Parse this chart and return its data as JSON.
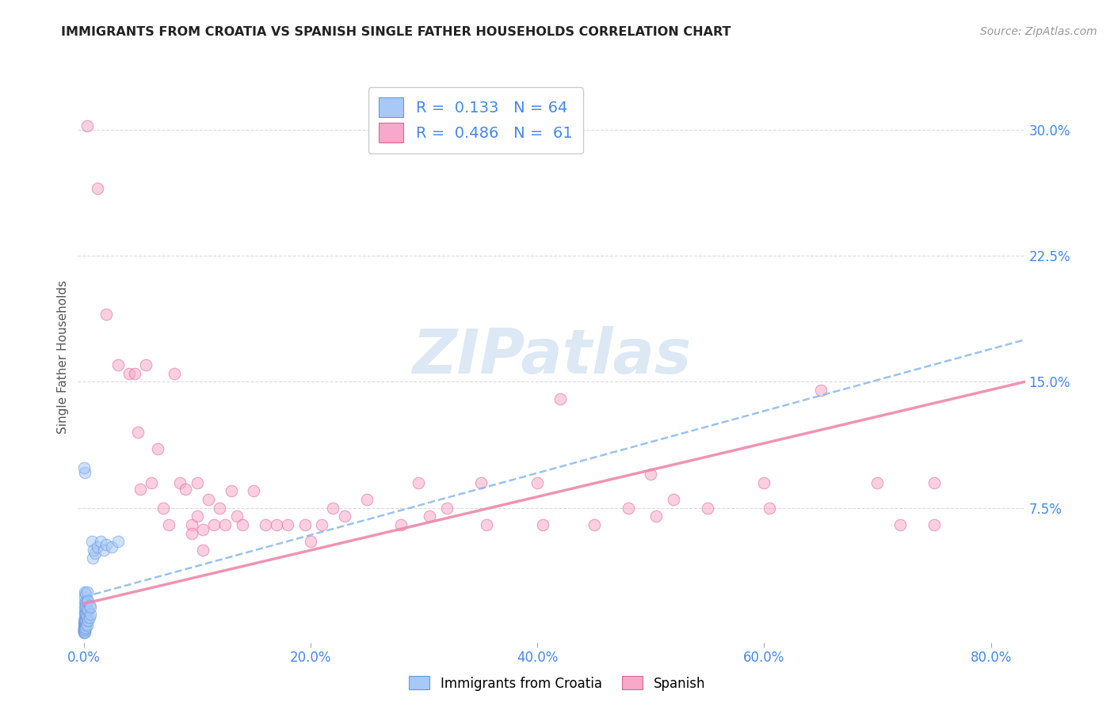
{
  "title": "IMMIGRANTS FROM CROATIA VS SPANISH SINGLE FATHER HOUSEHOLDS CORRELATION CHART",
  "source": "Source: ZipAtlas.com",
  "ylabel": "Single Father Households",
  "x_tick_labels": [
    "0.0%",
    "20.0%",
    "40.0%",
    "60.0%",
    "80.0%"
  ],
  "x_tick_vals": [
    0.0,
    0.2,
    0.4,
    0.6,
    0.8
  ],
  "y_tick_right_labels": [
    "7.5%",
    "15.0%",
    "22.5%",
    "30.0%"
  ],
  "y_tick_right_vals": [
    0.075,
    0.15,
    0.225,
    0.3
  ],
  "xlim": [
    -0.005,
    0.83
  ],
  "ylim": [
    -0.005,
    0.335
  ],
  "croatia_color": "#a8c8f8",
  "croatia_edge_color": "#6699dd",
  "spanish_color": "#f8a8c8",
  "spanish_edge_color": "#dd6699",
  "croatia_line_color": "#88b8ee",
  "spanish_line_color": "#ee88aa",
  "watermark": "ZIPatlas",
  "watermark_color": "#dde8f5",
  "grid_color": "#cccccc",
  "title_color": "#222222",
  "axis_color": "#4488ee",
  "legend_croatia_label": "R =  0.133   N = 64",
  "legend_spanish_label": "R =  0.486   N =  61",
  "bottom_legend_croatia": "Immigrants from Croatia",
  "bottom_legend_spanish": "Spanish",
  "croatia_points": [
    [
      0.0002,
      0.001
    ],
    [
      0.0003,
      0.002
    ],
    [
      0.0003,
      0.003
    ],
    [
      0.0004,
      0.001
    ],
    [
      0.0004,
      0.004
    ],
    [
      0.0005,
      0.002
    ],
    [
      0.0005,
      0.005
    ],
    [
      0.0005,
      0.008
    ],
    [
      0.0006,
      0.003
    ],
    [
      0.0006,
      0.006
    ],
    [
      0.0007,
      0.004
    ],
    [
      0.0007,
      0.007
    ],
    [
      0.0008,
      0.002
    ],
    [
      0.0008,
      0.005
    ],
    [
      0.0009,
      0.003
    ],
    [
      0.0009,
      0.006
    ],
    [
      0.001,
      0.001
    ],
    [
      0.001,
      0.004
    ],
    [
      0.001,
      0.007
    ],
    [
      0.001,
      0.01
    ],
    [
      0.001,
      0.013
    ],
    [
      0.001,
      0.016
    ],
    [
      0.001,
      0.019
    ],
    [
      0.001,
      0.022
    ],
    [
      0.001,
      0.025
    ],
    [
      0.0012,
      0.003
    ],
    [
      0.0012,
      0.008
    ],
    [
      0.0012,
      0.012
    ],
    [
      0.0015,
      0.005
    ],
    [
      0.0015,
      0.009
    ],
    [
      0.0015,
      0.014
    ],
    [
      0.0015,
      0.018
    ],
    [
      0.002,
      0.004
    ],
    [
      0.002,
      0.008
    ],
    [
      0.002,
      0.012
    ],
    [
      0.002,
      0.016
    ],
    [
      0.002,
      0.02
    ],
    [
      0.002,
      0.024
    ],
    [
      0.0025,
      0.006
    ],
    [
      0.0025,
      0.011
    ],
    [
      0.003,
      0.005
    ],
    [
      0.003,
      0.01
    ],
    [
      0.003,
      0.015
    ],
    [
      0.003,
      0.02
    ],
    [
      0.003,
      0.025
    ],
    [
      0.004,
      0.008
    ],
    [
      0.004,
      0.014
    ],
    [
      0.004,
      0.02
    ],
    [
      0.005,
      0.01
    ],
    [
      0.005,
      0.017
    ],
    [
      0.006,
      0.012
    ],
    [
      0.006,
      0.016
    ],
    [
      0.007,
      0.055
    ],
    [
      0.008,
      0.045
    ],
    [
      0.009,
      0.05
    ],
    [
      0.01,
      0.048
    ],
    [
      0.012,
      0.052
    ],
    [
      0.015,
      0.055
    ],
    [
      0.018,
      0.05
    ],
    [
      0.02,
      0.053
    ],
    [
      0.025,
      0.052
    ],
    [
      0.03,
      0.055
    ],
    [
      0.001,
      0.096
    ],
    [
      0.0005,
      0.099
    ]
  ],
  "spanish_points": [
    [
      0.003,
      0.302
    ],
    [
      0.012,
      0.265
    ],
    [
      0.02,
      0.19
    ],
    [
      0.03,
      0.16
    ],
    [
      0.04,
      0.155
    ],
    [
      0.045,
      0.155
    ],
    [
      0.048,
      0.12
    ],
    [
      0.05,
      0.086
    ],
    [
      0.055,
      0.16
    ],
    [
      0.06,
      0.09
    ],
    [
      0.065,
      0.11
    ],
    [
      0.07,
      0.075
    ],
    [
      0.075,
      0.065
    ],
    [
      0.08,
      0.155
    ],
    [
      0.085,
      0.09
    ],
    [
      0.09,
      0.086
    ],
    [
      0.095,
      0.065
    ],
    [
      0.095,
      0.06
    ],
    [
      0.1,
      0.09
    ],
    [
      0.1,
      0.07
    ],
    [
      0.105,
      0.062
    ],
    [
      0.105,
      0.05
    ],
    [
      0.11,
      0.08
    ],
    [
      0.115,
      0.065
    ],
    [
      0.12,
      0.075
    ],
    [
      0.125,
      0.065
    ],
    [
      0.13,
      0.085
    ],
    [
      0.135,
      0.07
    ],
    [
      0.14,
      0.065
    ],
    [
      0.15,
      0.085
    ],
    [
      0.16,
      0.065
    ],
    [
      0.17,
      0.065
    ],
    [
      0.18,
      0.065
    ],
    [
      0.195,
      0.065
    ],
    [
      0.2,
      0.055
    ],
    [
      0.21,
      0.065
    ],
    [
      0.22,
      0.075
    ],
    [
      0.23,
      0.07
    ],
    [
      0.25,
      0.08
    ],
    [
      0.28,
      0.065
    ],
    [
      0.295,
      0.09
    ],
    [
      0.305,
      0.07
    ],
    [
      0.32,
      0.075
    ],
    [
      0.35,
      0.09
    ],
    [
      0.355,
      0.065
    ],
    [
      0.4,
      0.09
    ],
    [
      0.405,
      0.065
    ],
    [
      0.42,
      0.14
    ],
    [
      0.45,
      0.065
    ],
    [
      0.48,
      0.075
    ],
    [
      0.5,
      0.095
    ],
    [
      0.505,
      0.07
    ],
    [
      0.52,
      0.08
    ],
    [
      0.55,
      0.075
    ],
    [
      0.6,
      0.09
    ],
    [
      0.605,
      0.075
    ],
    [
      0.65,
      0.145
    ],
    [
      0.7,
      0.09
    ],
    [
      0.72,
      0.065
    ],
    [
      0.75,
      0.065
    ],
    [
      0.75,
      0.09
    ]
  ],
  "croatia_regline": [
    0.0,
    0.83,
    0.022,
    0.175
  ],
  "spanish_regline": [
    0.0,
    0.83,
    0.018,
    0.15
  ]
}
